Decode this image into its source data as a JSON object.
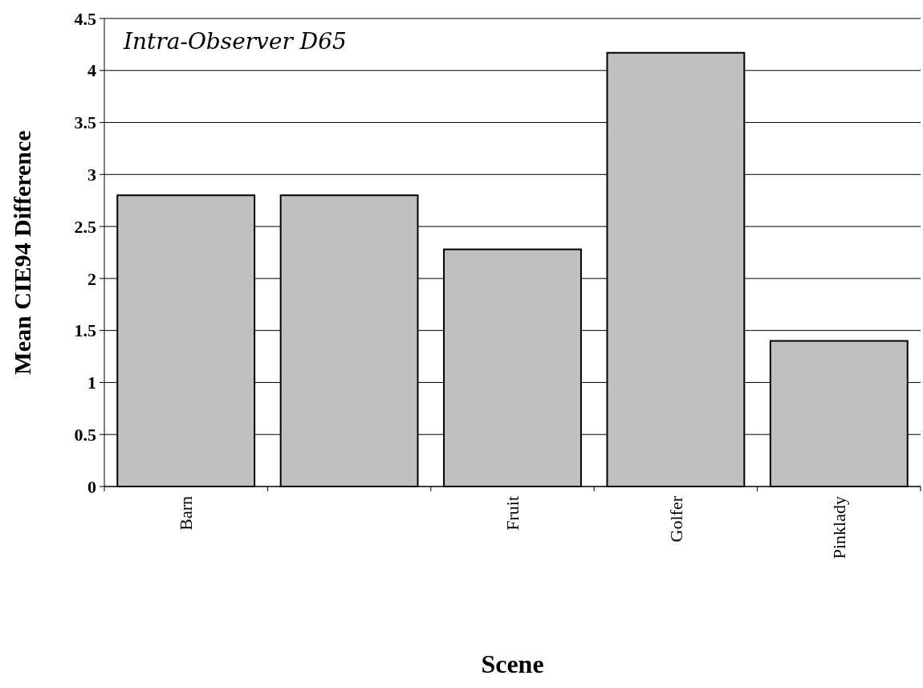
{
  "chart_data": {
    "type": "bar",
    "xlabel": "Scene",
    "ylabel": "Mean CIE94 Difference",
    "annotations": [
      "Intra-Observer D65"
    ],
    "categories": [
      "Barn",
      null,
      "Fruit",
      "Golfer",
      "Pinklady"
    ],
    "values": [
      2.8,
      2.8,
      2.28,
      4.17,
      1.4
    ],
    "color": "#c0c0c0",
    "ylim": [
      0,
      4.5
    ],
    "yticks": [
      0,
      0.5,
      1,
      1.5,
      2,
      2.5,
      3,
      3.5,
      4,
      4.5
    ],
    "grid": "y"
  }
}
